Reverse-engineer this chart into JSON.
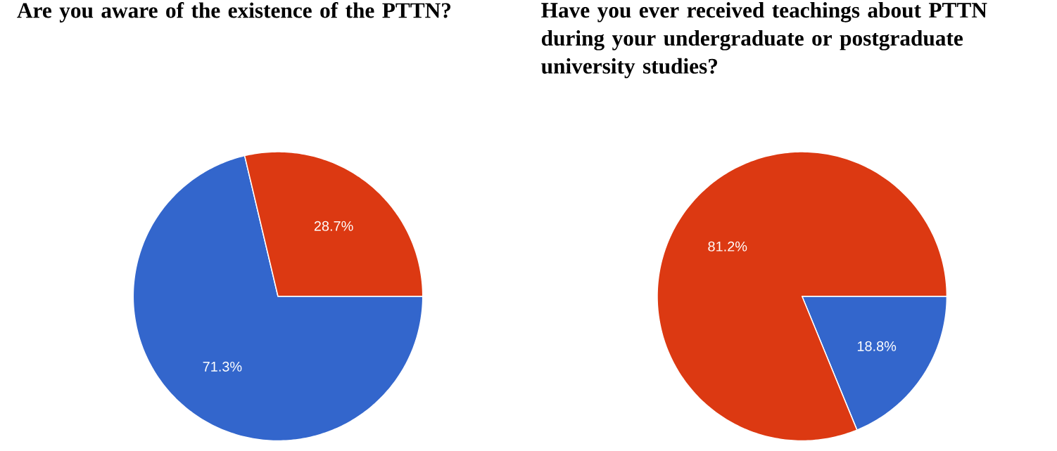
{
  "chart_data": [
    {
      "type": "pie",
      "title": "Are you aware of the existence of the PTTN?",
      "categories": [
        null,
        null
      ],
      "values": [
        71.3,
        28.7
      ],
      "colors": [
        "#3366cc",
        "#dc3912"
      ],
      "value_labels": [
        "71.3%",
        "28.7%"
      ]
    },
    {
      "type": "pie",
      "title": "Have you ever received teachings about PTTN during your undergraduate or postgraduate university studies?",
      "categories": [
        null,
        null
      ],
      "values": [
        18.8,
        81.2
      ],
      "colors": [
        "#3366cc",
        "#dc3912"
      ],
      "value_labels": [
        "18.8%",
        "81.2%"
      ]
    }
  ]
}
